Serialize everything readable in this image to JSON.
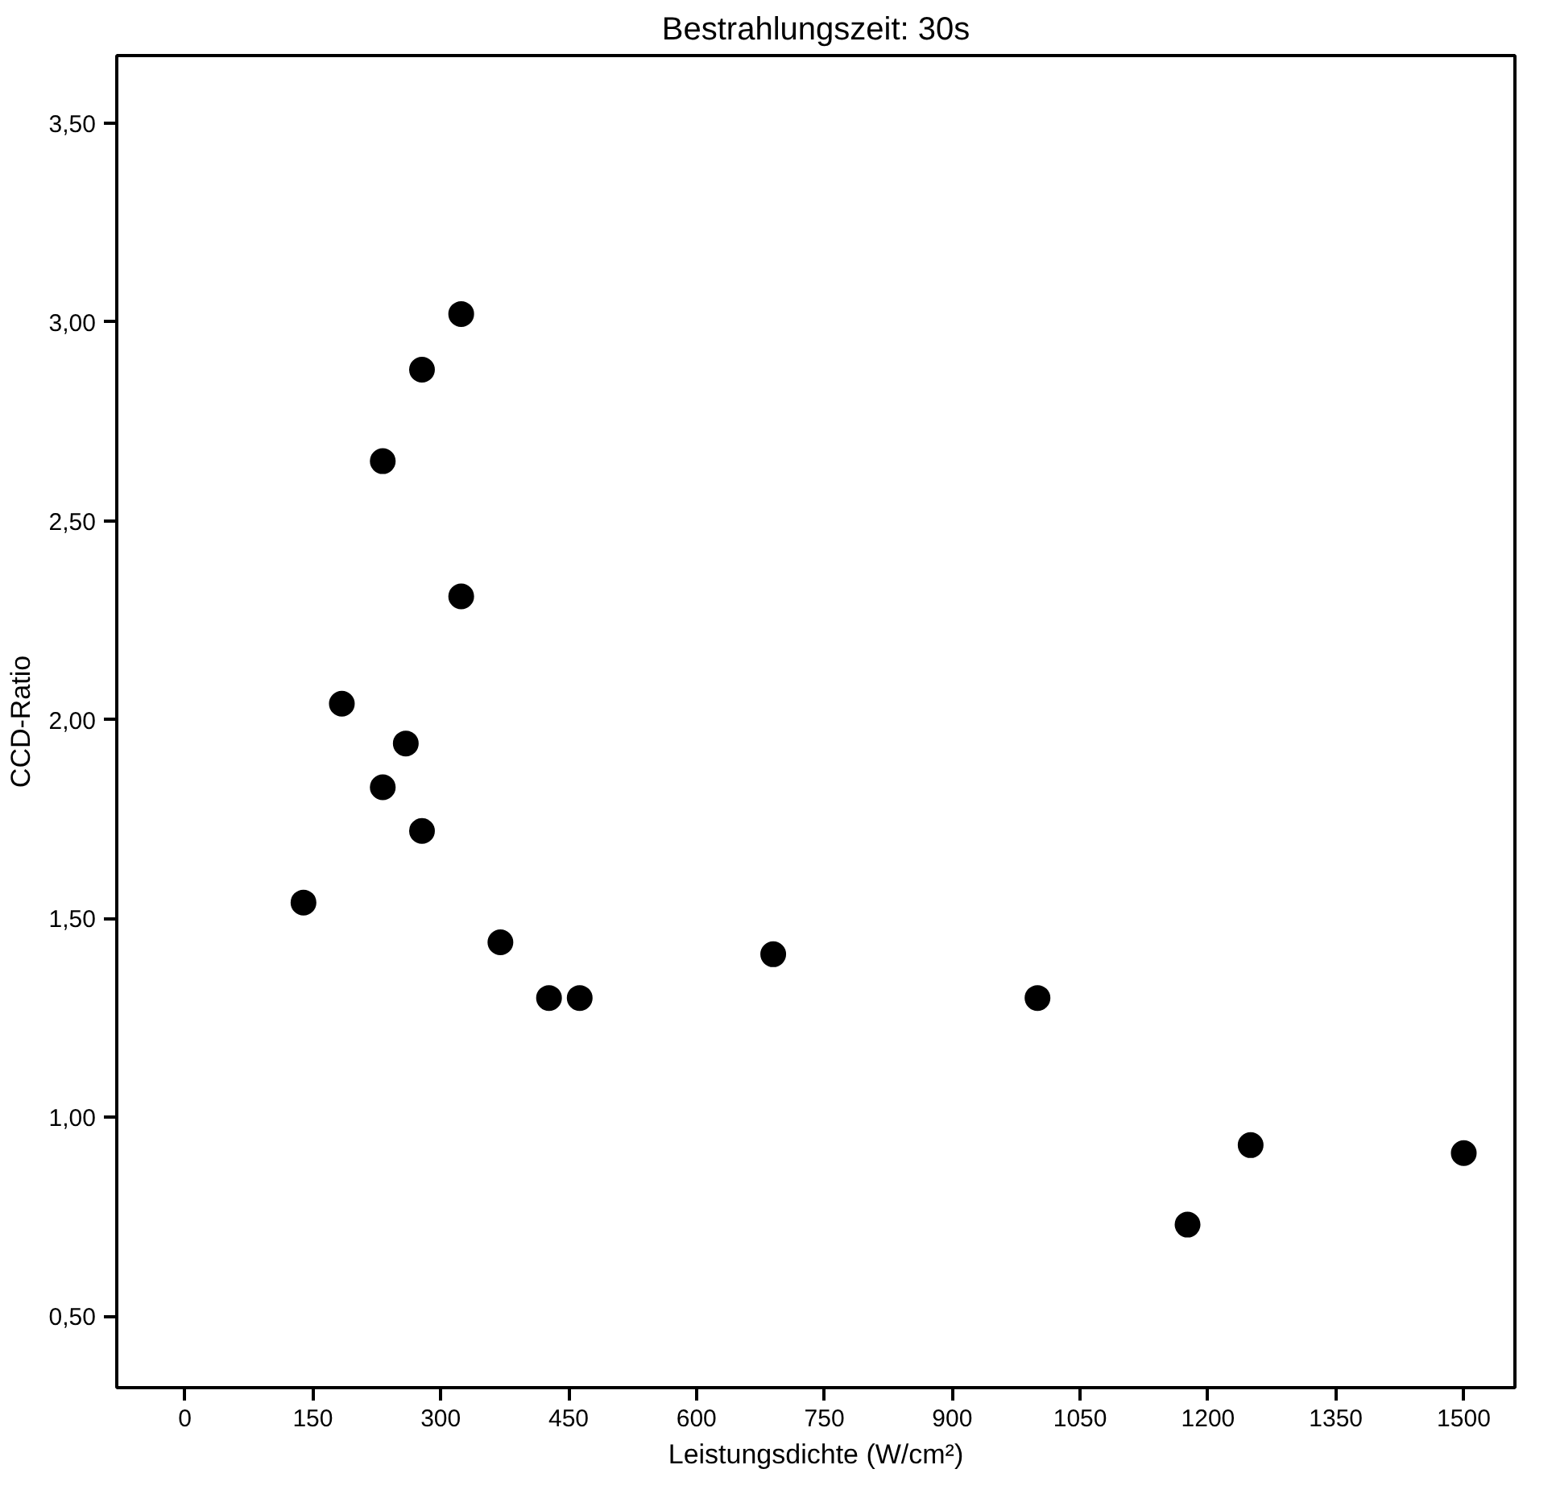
{
  "chart_data": {
    "type": "scatter",
    "title": "Bestrahlungszeit: 30s",
    "xlabel": "Leistungsdichte (W/cm²)",
    "ylabel": "CCD-Ratio",
    "x": [
      324,
      278,
      232,
      324,
      184,
      259,
      232,
      278,
      139,
      370,
      427,
      463,
      690,
      1000,
      1176,
      1250,
      1500
    ],
    "series": [
      {
        "color": "#000000",
        "values": [
          3.02,
          2.88,
          2.65,
          2.31,
          2.04,
          1.94,
          1.83,
          1.72,
          1.54,
          1.44,
          1.3,
          1.3,
          1.41,
          1.3,
          0.73,
          0.93,
          0.91
        ]
      }
    ],
    "xlim": [
      -80,
      1560
    ],
    "ylim": [
      0.32,
      3.67
    ],
    "xticks": [
      0,
      150,
      300,
      450,
      600,
      750,
      900,
      1050,
      1200,
      1350,
      1500
    ],
    "yticks": [
      {
        "value": 0.5,
        "label": "0,50"
      },
      {
        "value": 1.0,
        "label": "1,00"
      },
      {
        "value": 1.5,
        "label": "1,50"
      },
      {
        "value": 2.0,
        "label": "2,00"
      },
      {
        "value": 2.5,
        "label": "2,50"
      },
      {
        "value": 3.0,
        "label": "3,00"
      },
      {
        "value": 3.5,
        "label": "3,50"
      }
    ],
    "marker": "circle",
    "grid": false
  }
}
